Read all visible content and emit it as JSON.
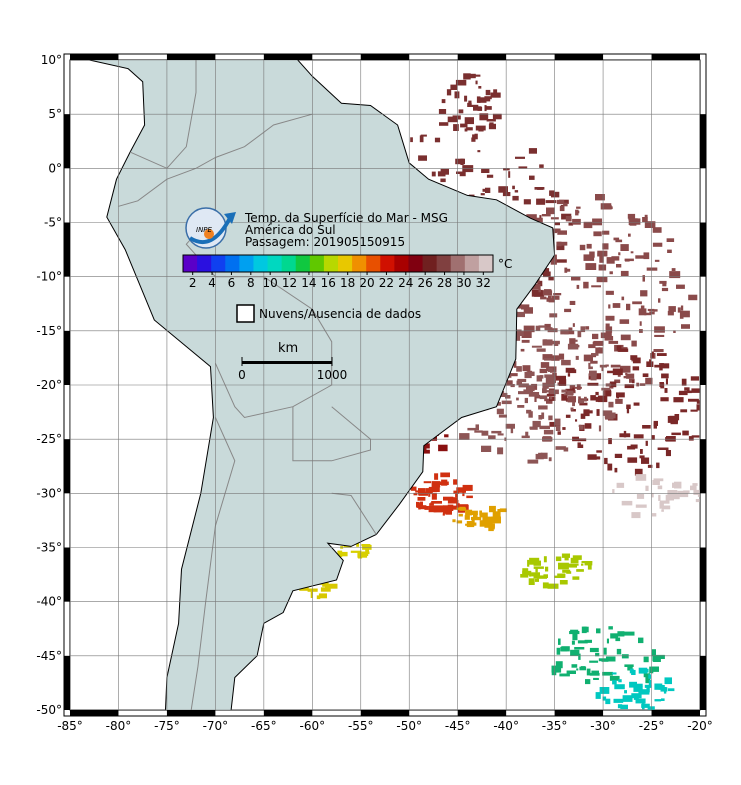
{
  "map": {
    "title": "Temp. da Superfície do Mar - MSG",
    "subtitle": "América do Sul",
    "pass": "Passagem: 201905150915",
    "logo": "INPE",
    "xlim": [
      -85,
      -20
    ],
    "ylim": [
      -50,
      10
    ],
    "xticks": [
      {
        "value": -85,
        "label": "-85°"
      },
      {
        "value": -80,
        "label": "-80°"
      },
      {
        "value": -75,
        "label": "-75°"
      },
      {
        "value": -70,
        "label": "-70°"
      },
      {
        "value": -65,
        "label": "-65°"
      },
      {
        "value": -60,
        "label": "-60°"
      },
      {
        "value": -55,
        "label": "-55°"
      },
      {
        "value": -50,
        "label": "-50°"
      },
      {
        "value": -45,
        "label": "-45°"
      },
      {
        "value": -40,
        "label": "-40°"
      },
      {
        "value": -35,
        "label": "-35°"
      },
      {
        "value": -30,
        "label": "-30°"
      },
      {
        "value": -25,
        "label": "-25°"
      },
      {
        "value": -20,
        "label": "-20°"
      }
    ],
    "yticks": [
      {
        "value": 10,
        "label": "10°"
      },
      {
        "value": 5,
        "label": "5°"
      },
      {
        "value": 0,
        "label": "0°"
      },
      {
        "value": -5,
        "label": "-5°"
      },
      {
        "value": -10,
        "label": "-10°"
      },
      {
        "value": -15,
        "label": "-15°"
      },
      {
        "value": -20,
        "label": "-20°"
      },
      {
        "value": -25,
        "label": "-25°"
      },
      {
        "value": -30,
        "label": "-30°"
      },
      {
        "value": -35,
        "label": "-35°"
      },
      {
        "value": -40,
        "label": "-40°"
      },
      {
        "value": -45,
        "label": "-45°"
      },
      {
        "value": -50,
        "label": "-50°"
      }
    ],
    "grid": true,
    "colorbar": {
      "unit": "°C",
      "range": [
        1,
        33
      ],
      "ticks": [
        2,
        4,
        6,
        8,
        10,
        12,
        14,
        16,
        18,
        20,
        22,
        24,
        26,
        28,
        30,
        32
      ],
      "colors": [
        "#5a00c8",
        "#2a10e0",
        "#1040f0",
        "#0070f0",
        "#00a0f0",
        "#00c8e0",
        "#00d8c0",
        "#00d890",
        "#10c840",
        "#60c800",
        "#b8d800",
        "#e8c800",
        "#f09000",
        "#e85000",
        "#d01000",
        "#a80000",
        "#800010",
        "#702020",
        "#804040",
        "#a07070",
        "#c0a0a0",
        "#d8c8c8"
      ]
    },
    "legend": "Nuvens/Ausencia de dados",
    "scale": {
      "label": "km",
      "ticks": [
        0,
        1000
      ]
    }
  }
}
